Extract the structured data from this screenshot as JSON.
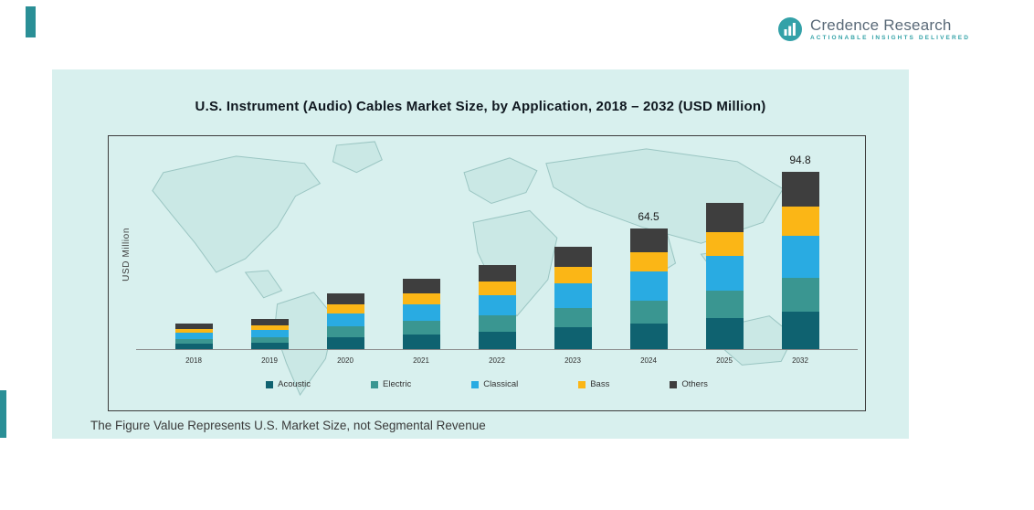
{
  "page": {
    "footnote": "The Figure Value Represents U.S. Market Size, not Segmental Revenue"
  },
  "logo": {
    "brand": "Credence Research",
    "tagline": "Actionable Insights Delivered",
    "icon_name": "bar-chart-circle-icon",
    "icon_color": "#33a1a8"
  },
  "colors": {
    "accent_teal": "#2a8f96",
    "card_background": "#d8f0ee",
    "title_text": "#101820"
  },
  "chart_data": {
    "type": "bar",
    "stacked": true,
    "title": "U.S. Instrument (Audio) Cables Market Size, by Application, 2018 – 2032 (USD Million)",
    "ylabel": "USD Million",
    "xlabel": "",
    "grid": false,
    "y_axis_ticks_visible": false,
    "legend_position": "bottom",
    "ylim": [
      0,
      100
    ],
    "categories": [
      "2018",
      "2019",
      "2020",
      "2021",
      "2022",
      "2023",
      "2024",
      "2025",
      "2032"
    ],
    "series": [
      {
        "name": "Acoustic",
        "color": "#0f6270",
        "values": [
          2.9,
          3.4,
          6.3,
          7.9,
          9.4,
          11.5,
          13.5,
          16.4,
          19.9
        ]
      },
      {
        "name": "Electric",
        "color": "#3a9691",
        "values": [
          2.6,
          3.0,
          5.7,
          7.1,
          8.5,
          10.4,
          12.3,
          14.8,
          18.0
        ]
      },
      {
        "name": "Classical",
        "color": "#29abe2",
        "values": [
          3.3,
          3.8,
          7.2,
          9.0,
          10.8,
          13.1,
          15.5,
          18.7,
          22.8
        ]
      },
      {
        "name": "Bass",
        "color": "#fbb616",
        "values": [
          2.2,
          2.6,
          4.8,
          6.0,
          7.2,
          8.7,
          10.3,
          12.5,
          15.2
        ]
      },
      {
        "name": "Others",
        "color": "#3e3e3e",
        "values": [
          2.9,
          3.2,
          5.8,
          7.4,
          9.0,
          10.9,
          12.9,
          15.5,
          18.9
        ]
      }
    ],
    "totals": [
      13.9,
      16.0,
      29.8,
      37.4,
      44.9,
      54.6,
      64.5,
      77.9,
      94.8
    ],
    "bar_total_labels": [
      "",
      "",
      "",
      "",
      "",
      "",
      "64.5",
      "",
      "94.8"
    ]
  }
}
